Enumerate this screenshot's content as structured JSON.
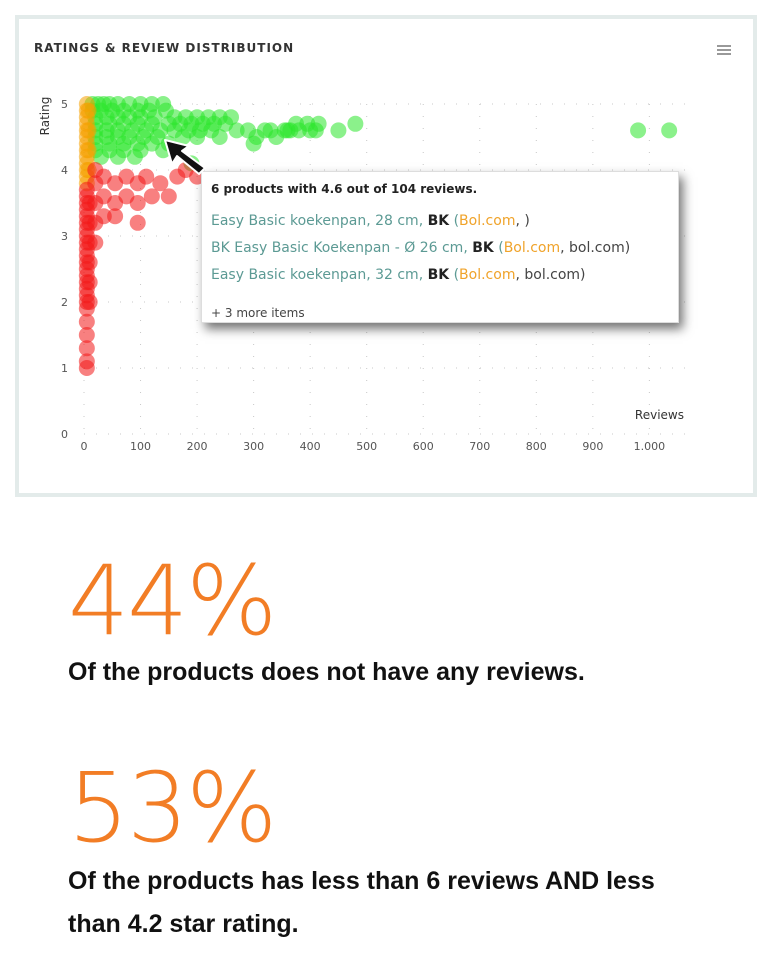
{
  "card": {
    "title": "RATINGS & REVIEW DISTRIBUTION",
    "menu_icon": "hamburger-menu-icon"
  },
  "chart_data": {
    "type": "scatter",
    "title": "RATINGS & REVIEW DISTRIBUTION",
    "xlabel": "Reviews",
    "ylabel": "Rating",
    "xlim": [
      0,
      1040
    ],
    "ylim": [
      0,
      5
    ],
    "x_ticks": [
      "0",
      "100",
      "200",
      "300",
      "400",
      "500",
      "600",
      "700",
      "800",
      "900",
      "1.000"
    ],
    "y_ticks": [
      "0",
      "1",
      "2",
      "3",
      "4",
      "5"
    ],
    "grid": true,
    "colors": {
      "high": "#2ce62c",
      "mid": "#f5a000",
      "low": "#f21818"
    },
    "series": [
      {
        "color_key": "high",
        "points": [
          [
            15,
            5
          ],
          [
            25,
            5
          ],
          [
            35,
            5
          ],
          [
            45,
            5
          ],
          [
            60,
            5
          ],
          [
            80,
            5
          ],
          [
            100,
            5
          ],
          [
            120,
            5
          ],
          [
            140,
            5
          ],
          [
            15,
            4.9
          ],
          [
            30,
            4.9
          ],
          [
            50,
            4.9
          ],
          [
            70,
            4.9
          ],
          [
            95,
            4.9
          ],
          [
            115,
            4.9
          ],
          [
            145,
            4.9
          ],
          [
            160,
            4.8
          ],
          [
            180,
            4.8
          ],
          [
            200,
            4.8
          ],
          [
            220,
            4.8
          ],
          [
            240,
            4.8
          ],
          [
            260,
            4.8
          ],
          [
            20,
            4.8
          ],
          [
            40,
            4.8
          ],
          [
            60,
            4.8
          ],
          [
            80,
            4.8
          ],
          [
            100,
            4.8
          ],
          [
            125,
            4.8
          ],
          [
            150,
            4.7
          ],
          [
            20,
            4.7
          ],
          [
            45,
            4.7
          ],
          [
            70,
            4.7
          ],
          [
            95,
            4.7
          ],
          [
            120,
            4.7
          ],
          [
            170,
            4.7
          ],
          [
            190,
            4.7
          ],
          [
            210,
            4.7
          ],
          [
            230,
            4.7
          ],
          [
            250,
            4.7
          ],
          [
            20,
            4.6
          ],
          [
            40,
            4.6
          ],
          [
            60,
            4.6
          ],
          [
            85,
            4.6
          ],
          [
            110,
            4.6
          ],
          [
            135,
            4.6
          ],
          [
            160,
            4.6
          ],
          [
            185,
            4.6
          ],
          [
            205,
            4.6
          ],
          [
            225,
            4.6
          ],
          [
            240,
            4.5
          ],
          [
            270,
            4.6
          ],
          [
            20,
            4.5
          ],
          [
            40,
            4.5
          ],
          [
            60,
            4.5
          ],
          [
            80,
            4.5
          ],
          [
            105,
            4.5
          ],
          [
            130,
            4.5
          ],
          [
            150,
            4.4
          ],
          [
            175,
            4.5
          ],
          [
            200,
            4.5
          ],
          [
            20,
            4.4
          ],
          [
            45,
            4.4
          ],
          [
            70,
            4.4
          ],
          [
            95,
            4.4
          ],
          [
            120,
            4.4
          ],
          [
            140,
            4.3
          ],
          [
            20,
            4.3
          ],
          [
            45,
            4.3
          ],
          [
            70,
            4.3
          ],
          [
            100,
            4.3
          ],
          [
            30,
            4.2
          ],
          [
            60,
            4.2
          ],
          [
            90,
            4.2
          ],
          [
            190,
            4.1
          ],
          [
            290,
            4.6
          ],
          [
            320,
            4.6
          ],
          [
            340,
            4.5
          ],
          [
            355,
            4.6
          ],
          [
            375,
            4.7
          ],
          [
            395,
            4.7
          ],
          [
            410,
            4.6
          ],
          [
            415,
            4.7
          ],
          [
            450,
            4.6
          ],
          [
            480,
            4.7
          ],
          [
            305,
            4.5
          ],
          [
            330,
            4.6
          ],
          [
            360,
            4.6
          ],
          [
            380,
            4.6
          ],
          [
            400,
            4.6
          ],
          [
            300,
            4.4
          ],
          [
            365,
            4.6
          ],
          [
            980,
            4.6
          ],
          [
            1035,
            4.6
          ]
        ]
      },
      {
        "color_key": "mid",
        "points": [
          [
            5,
            5
          ],
          [
            5,
            4.9
          ],
          [
            5,
            4.8
          ],
          [
            5,
            4.7
          ],
          [
            5,
            4.6
          ],
          [
            5,
            4.5
          ],
          [
            5,
            4.4
          ],
          [
            5,
            4.3
          ],
          [
            5,
            4.2
          ],
          [
            5,
            4.1
          ],
          [
            5,
            4
          ],
          [
            5,
            3.9
          ],
          [
            5,
            3.8
          ],
          [
            8,
            4.9
          ],
          [
            8,
            4.6
          ],
          [
            8,
            4.3
          ],
          [
            8,
            4
          ]
        ]
      },
      {
        "color_key": "low",
        "points": [
          [
            5,
            3.7
          ],
          [
            5,
            3.6
          ],
          [
            5,
            3.5
          ],
          [
            5,
            3.4
          ],
          [
            5,
            3.3
          ],
          [
            5,
            3.2
          ],
          [
            5,
            3.1
          ],
          [
            5,
            3
          ],
          [
            5,
            2.9
          ],
          [
            5,
            2.8
          ],
          [
            5,
            2.7
          ],
          [
            5,
            2.6
          ],
          [
            5,
            2.5
          ],
          [
            5,
            2.4
          ],
          [
            5,
            2.3
          ],
          [
            5,
            2.2
          ],
          [
            5,
            2.1
          ],
          [
            5,
            2
          ],
          [
            5,
            1.9
          ],
          [
            5,
            1.7
          ],
          [
            5,
            1.5
          ],
          [
            5,
            1.3
          ],
          [
            5,
            1.1
          ],
          [
            5,
            1
          ],
          [
            10,
            3.5
          ],
          [
            10,
            3.2
          ],
          [
            10,
            2.9
          ],
          [
            10,
            2.6
          ],
          [
            10,
            2.3
          ],
          [
            10,
            2
          ],
          [
            20,
            4
          ],
          [
            20,
            3.8
          ],
          [
            20,
            3.5
          ],
          [
            20,
            3.2
          ],
          [
            20,
            2.9
          ],
          [
            35,
            3.9
          ],
          [
            35,
            3.6
          ],
          [
            35,
            3.3
          ],
          [
            55,
            3.8
          ],
          [
            55,
            3.5
          ],
          [
            55,
            3.3
          ],
          [
            75,
            3.9
          ],
          [
            75,
            3.6
          ],
          [
            95,
            3.8
          ],
          [
            95,
            3.5
          ],
          [
            95,
            3.2
          ],
          [
            110,
            3.9
          ],
          [
            120,
            3.6
          ],
          [
            135,
            3.8
          ],
          [
            150,
            3.6
          ],
          [
            165,
            3.9
          ],
          [
            180,
            4
          ],
          [
            200,
            3.9
          ]
        ]
      }
    ]
  },
  "tooltip": {
    "header": "6 products with 4.6 out of 104 reviews.",
    "items": [
      {
        "name": "Easy Basic koekenpan, 28 cm, ",
        "brand": "BK",
        "shop": "Bol.com",
        "seller": ", )"
      },
      {
        "name": "BK Easy Basic Koekenpan - Ø 26 cm, ",
        "brand": "BK",
        "shop": "Bol.com",
        "seller": ", bol.com)"
      },
      {
        "name": "Easy Basic koekenpan, 32 cm, ",
        "brand": "BK",
        "shop": "Bol.com",
        "seller": ", bol.com)"
      }
    ],
    "more": "+ 3 more items"
  },
  "cursor_icon": "mouse-pointer-icon",
  "stats": [
    {
      "value": "44%",
      "text": "Of the products does not have any reviews."
    },
    {
      "value": "53%",
      "text": "Of the products has less than 6 reviews AND less than 4.2 star rating."
    }
  ]
}
